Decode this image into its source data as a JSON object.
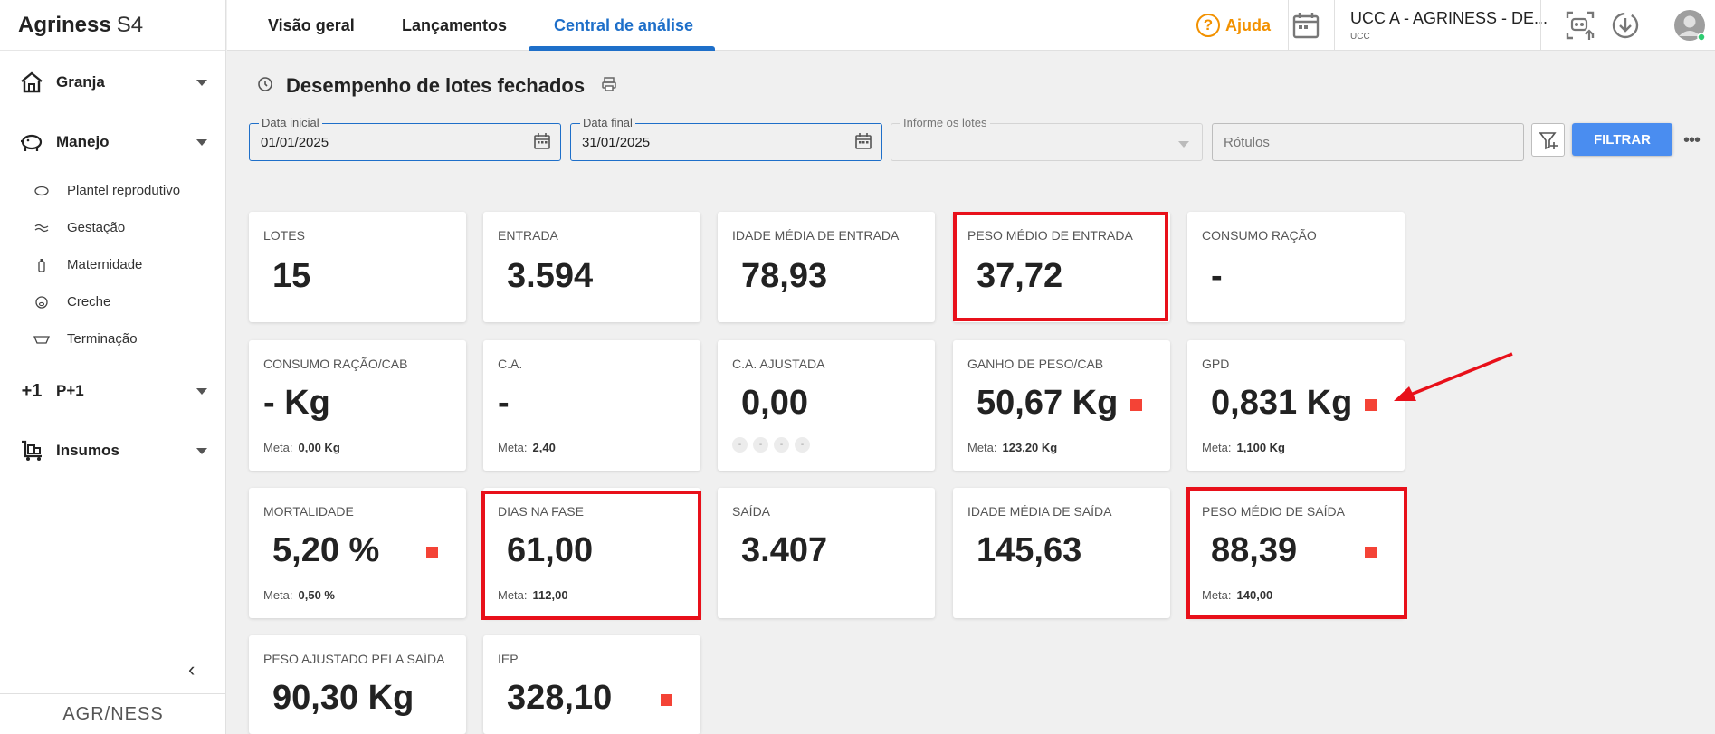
{
  "brand": {
    "name": "Agriness",
    "product": "S4",
    "footer": "AGR/NESS"
  },
  "sidebar": {
    "groups": [
      {
        "label": "Granja"
      },
      {
        "label": "Manejo"
      },
      {
        "label": "P+1"
      },
      {
        "label": "Insumos"
      }
    ],
    "manejo_items": [
      {
        "label": "Plantel reprodutivo"
      },
      {
        "label": "Gestação"
      },
      {
        "label": "Maternidade"
      },
      {
        "label": "Creche"
      },
      {
        "label": "Terminação"
      }
    ],
    "p1_icon_text": "+1"
  },
  "topbar": {
    "tabs": [
      {
        "label": "Visão geral"
      },
      {
        "label": "Lançamentos"
      },
      {
        "label": "Central de análise"
      }
    ],
    "help_label": "Ajuda",
    "farm_name": "UCC A - AGRINESS - DE...",
    "farm_sub": "UCC"
  },
  "page": {
    "title": "Desempenho de lotes fechados"
  },
  "filters": {
    "data_inicial_label": "Data inicial",
    "data_inicial_value": "01/01/2025",
    "data_final_label": "Data final",
    "data_final_value": "31/01/2025",
    "lotes_label": "Informe os lotes",
    "rotulos_placeholder": "Rótulos",
    "filtrar_label": "FILTRAR",
    "more_label": "•••"
  },
  "cards": {
    "lotes": {
      "label": "LOTES",
      "value": "15"
    },
    "entrada": {
      "label": "ENTRADA",
      "value": "3.594"
    },
    "idade_media_entrada": {
      "label": "IDADE MÉDIA DE ENTRADA",
      "value": "78,93"
    },
    "peso_medio_entrada": {
      "label": "PESO MÉDIO DE ENTRADA",
      "value": "37,72"
    },
    "consumo_racao": {
      "label": "CONSUMO RAÇÃO",
      "value": "-"
    },
    "consumo_racao_cab": {
      "label": "CONSUMO RAÇÃO/CAB",
      "value": "- Kg",
      "meta_label": "Meta:",
      "meta_value": "0,00 Kg"
    },
    "ca": {
      "label": "C.A.",
      "value": "-",
      "meta_label": "Meta:",
      "meta_value": "2,40"
    },
    "ca_ajustada": {
      "label": "C.A. AJUSTADA",
      "value": "0,00",
      "dots": [
        "-",
        "-",
        "-",
        "-"
      ]
    },
    "ganho_peso_cab": {
      "label": "GANHO DE PESO/CAB",
      "value": "50,67 Kg",
      "meta_label": "Meta:",
      "meta_value": "123,20 Kg"
    },
    "gpd": {
      "label": "GPD",
      "value": "0,831 Kg",
      "meta_label": "Meta:",
      "meta_value": "1,100 Kg"
    },
    "mortalidade": {
      "label": "MORTALIDADE",
      "value": "5,20 %",
      "meta_label": "Meta:",
      "meta_value": "0,50 %"
    },
    "dias_na_fase": {
      "label": "DIAS NA FASE",
      "value": "61,00",
      "meta_label": "Meta:",
      "meta_value": "112,00"
    },
    "saida": {
      "label": "SAÍDA",
      "value": "3.407"
    },
    "idade_media_saida": {
      "label": "IDADE MÉDIA DE SAÍDA",
      "value": "145,63"
    },
    "peso_medio_saida": {
      "label": "PESO MÉDIO DE SAÍDA",
      "value": "88,39",
      "meta_label": "Meta:",
      "meta_value": "140,00"
    },
    "peso_ajustado_saida": {
      "label": "PESO AJUSTADO PELA SAÍDA",
      "value": "90,30 Kg"
    },
    "iep": {
      "label": "IEP",
      "value": "328,10"
    }
  },
  "colors": {
    "accent": "#1e6fc9",
    "button": "#4a8df0",
    "alert": "#f44336",
    "highlight": "#e8101a",
    "help": "#f29100"
  }
}
